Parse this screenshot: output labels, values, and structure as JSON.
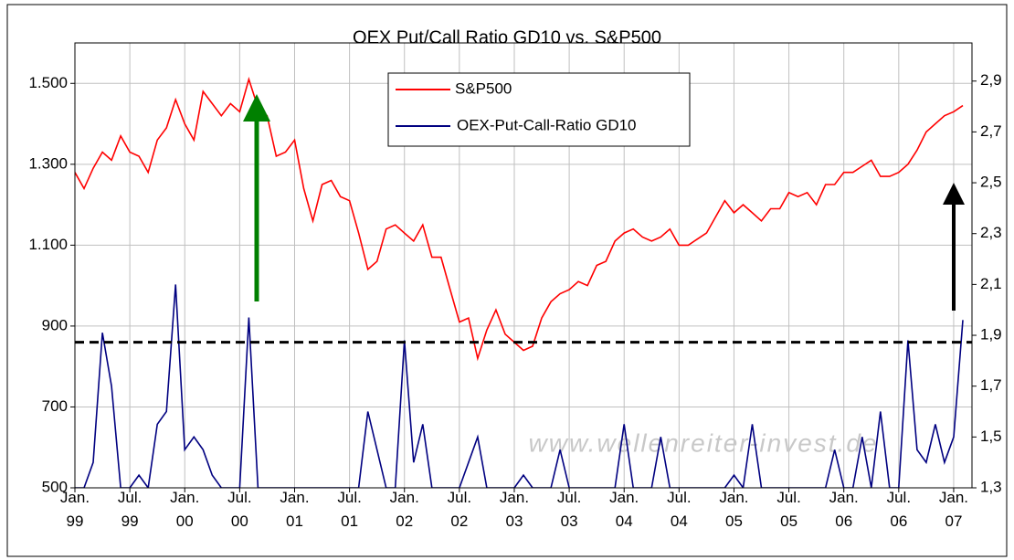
{
  "chart_data": {
    "type": "line",
    "title": "OEX Put/Call Ratio GD10 vs. S&P500",
    "x": [
      "1999-01",
      "1999-02",
      "1999-03",
      "1999-04",
      "1999-05",
      "1999-06",
      "1999-07",
      "1999-08",
      "1999-09",
      "1999-10",
      "1999-11",
      "1999-12",
      "2000-01",
      "2000-02",
      "2000-03",
      "2000-04",
      "2000-05",
      "2000-06",
      "2000-07",
      "2000-08",
      "2000-09",
      "2000-10",
      "2000-11",
      "2000-12",
      "2001-01",
      "2001-02",
      "2001-03",
      "2001-04",
      "2001-05",
      "2001-06",
      "2001-07",
      "2001-08",
      "2001-09",
      "2001-10",
      "2001-11",
      "2001-12",
      "2002-01",
      "2002-02",
      "2002-03",
      "2002-04",
      "2002-05",
      "2002-06",
      "2002-07",
      "2002-08",
      "2002-09",
      "2002-10",
      "2002-11",
      "2002-12",
      "2003-01",
      "2003-02",
      "2003-03",
      "2003-04",
      "2003-05",
      "2003-06",
      "2003-07",
      "2003-08",
      "2003-09",
      "2003-10",
      "2003-11",
      "2003-12",
      "2004-01",
      "2004-02",
      "2004-03",
      "2004-04",
      "2004-05",
      "2004-06",
      "2004-07",
      "2004-08",
      "2004-09",
      "2004-10",
      "2004-11",
      "2004-12",
      "2005-01",
      "2005-02",
      "2005-03",
      "2005-04",
      "2005-05",
      "2005-06",
      "2005-07",
      "2005-08",
      "2005-09",
      "2005-10",
      "2005-11",
      "2005-12",
      "2006-01",
      "2006-02",
      "2006-03",
      "2006-04",
      "2006-05",
      "2006-06",
      "2006-07",
      "2006-08",
      "2006-09",
      "2006-10",
      "2006-11",
      "2006-12",
      "2007-01",
      "2007-02"
    ],
    "series": [
      {
        "name": "S&P500",
        "color": "#ff0000",
        "axis": "y",
        "values": [
          1280,
          1240,
          1290,
          1330,
          1310,
          1370,
          1330,
          1320,
          1280,
          1360,
          1390,
          1460,
          1400,
          1360,
          1480,
          1450,
          1420,
          1450,
          1430,
          1510,
          1440,
          1420,
          1320,
          1330,
          1360,
          1240,
          1160,
          1250,
          1260,
          1220,
          1210,
          1130,
          1040,
          1060,
          1140,
          1150,
          1130,
          1110,
          1150,
          1070,
          1070,
          990,
          910,
          920,
          820,
          890,
          940,
          880,
          860,
          840,
          850,
          920,
          960,
          980,
          990,
          1010,
          1000,
          1050,
          1060,
          1110,
          1130,
          1140,
          1120,
          1110,
          1120,
          1140,
          1100,
          1100,
          1115,
          1130,
          1170,
          1210,
          1180,
          1200,
          1180,
          1160,
          1190,
          1190,
          1230,
          1220,
          1230,
          1200,
          1250,
          1250,
          1280,
          1280,
          1295,
          1310,
          1270,
          1270,
          1280,
          1300,
          1335,
          1380,
          1400,
          1420,
          1430,
          1445
        ]
      },
      {
        "name": "OEX-Put-Call-Ratio GD10",
        "color": "#000080",
        "axis": "y2",
        "values": [
          1.3,
          1.3,
          1.4,
          1.91,
          1.7,
          1.3,
          1.3,
          1.35,
          1.3,
          1.55,
          1.6,
          2.1,
          1.45,
          1.5,
          1.45,
          1.35,
          1.3,
          1.3,
          1.3,
          1.97,
          1.3,
          1.3,
          1.3,
          1.3,
          1.3,
          1.3,
          1.3,
          1.3,
          1.3,
          1.3,
          1.3,
          1.3,
          1.6,
          1.45,
          1.3,
          1.3,
          1.88,
          1.4,
          1.55,
          1.3,
          1.3,
          1.3,
          1.3,
          1.4,
          1.5,
          1.3,
          1.3,
          1.3,
          1.3,
          1.35,
          1.3,
          1.3,
          1.3,
          1.45,
          1.3,
          1.3,
          1.3,
          1.3,
          1.3,
          1.3,
          1.55,
          1.3,
          1.3,
          1.3,
          1.5,
          1.3,
          1.3,
          1.3,
          1.3,
          1.3,
          1.3,
          1.3,
          1.35,
          1.3,
          1.55,
          1.3,
          1.3,
          1.3,
          1.3,
          1.3,
          1.3,
          1.3,
          1.3,
          1.45,
          1.3,
          1.3,
          1.5,
          1.3,
          1.6,
          1.3,
          1.3,
          1.88,
          1.45,
          1.4,
          1.55,
          1.4,
          1.5,
          1.96
        ]
      }
    ],
    "xlim": [
      "1999-01",
      "2007-03"
    ],
    "xticks": [
      {
        "value": "1999-01",
        "label": "Jan. 99"
      },
      {
        "value": "1999-07",
        "label": "Jul. 99"
      },
      {
        "value": "2000-01",
        "label": "Jan. 00"
      },
      {
        "value": "2000-07",
        "label": "Jul. 00"
      },
      {
        "value": "2001-01",
        "label": "Jan. 01"
      },
      {
        "value": "2001-07",
        "label": "Jul. 01"
      },
      {
        "value": "2002-01",
        "label": "Jan. 02"
      },
      {
        "value": "2002-07",
        "label": "Jul. 02"
      },
      {
        "value": "2003-01",
        "label": "Jan. 03"
      },
      {
        "value": "2003-07",
        "label": "Jul. 03"
      },
      {
        "value": "2004-01",
        "label": "Jan. 04"
      },
      {
        "value": "2004-07",
        "label": "Jul. 04"
      },
      {
        "value": "2005-01",
        "label": "Jan. 05"
      },
      {
        "value": "2005-07",
        "label": "Jul. 05"
      },
      {
        "value": "2006-01",
        "label": "Jan. 06"
      },
      {
        "value": "2006-07",
        "label": "Jul. 06"
      },
      {
        "value": "2007-01",
        "label": "Jan. 07"
      }
    ],
    "ylim": [
      500,
      1600
    ],
    "yticks": [
      {
        "value": 500,
        "label": "500"
      },
      {
        "value": 700,
        "label": "700"
      },
      {
        "value": 900,
        "label": "900"
      },
      {
        "value": 1100,
        "label": "1.100"
      },
      {
        "value": 1300,
        "label": "1.300"
      },
      {
        "value": 1500,
        "label": "1.500"
      }
    ],
    "y2lim": [
      1.3,
      3.05
    ],
    "y2ticks": [
      {
        "value": 1.3,
        "label": "1,3"
      },
      {
        "value": 1.5,
        "label": "1,5"
      },
      {
        "value": 1.7,
        "label": "1,7"
      },
      {
        "value": 1.9,
        "label": "1,9"
      },
      {
        "value": 2.1,
        "label": "2,1"
      },
      {
        "value": 2.3,
        "label": "2,3"
      },
      {
        "value": 2.5,
        "label": "2,5"
      },
      {
        "value": 2.7,
        "label": "2,7"
      },
      {
        "value": 2.9,
        "label": "2,9"
      }
    ],
    "reference_line": 860,
    "grid": true,
    "watermark": "www.wellenreiter-invest.de"
  }
}
